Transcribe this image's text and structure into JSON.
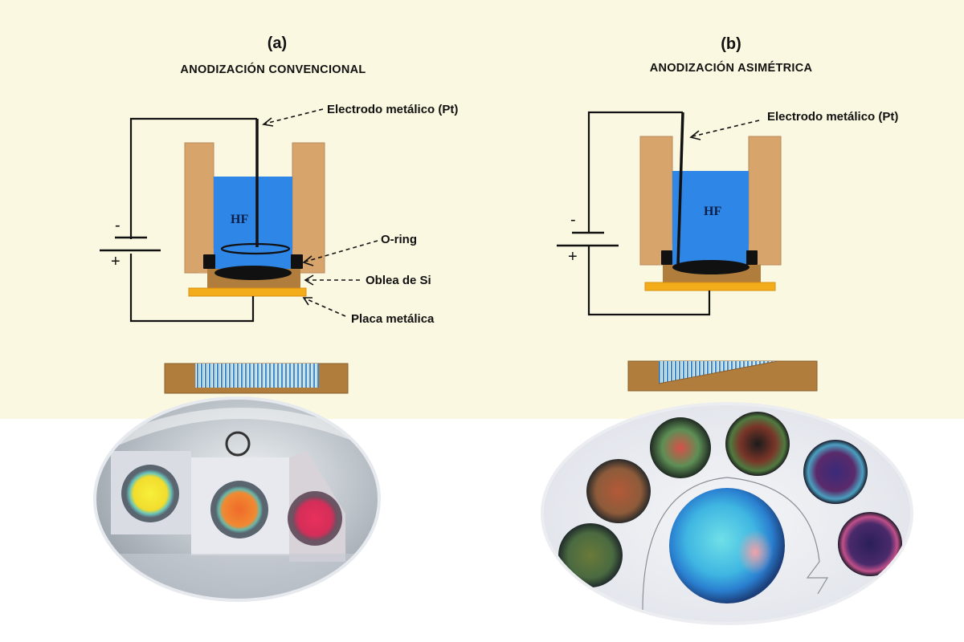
{
  "colors": {
    "background_top": "#fbf8e1",
    "holder": "#d7a56b",
    "electrolyte": "#2e86e6",
    "wafer": "#b07d3c",
    "metal_plate": "#f3ad1a",
    "porous_layer": "#9fd0ee"
  },
  "panels": [
    {
      "id": "a",
      "letter": "(a)",
      "title": "ANODIZACIÓN CONVENCIONAL",
      "electrolyte_label": "HF",
      "polarity_minus": "-",
      "polarity_plus": "+",
      "callouts": [
        "Electrodo metálico (Pt)",
        "O-ring",
        "Oblea de Si",
        "Placa metálica"
      ],
      "photo_icon": "sample-photo-three-coloured-circles"
    },
    {
      "id": "b",
      "letter": "(b)",
      "title": "ANODIZACIÓN ASIMÉTRICA",
      "electrolyte_label": "HF",
      "polarity_minus": "-",
      "polarity_plus": "+",
      "callouts": [
        "Electrodo metálico (Pt)"
      ],
      "photo_icon": "sample-photo-gradient-circles"
    }
  ]
}
